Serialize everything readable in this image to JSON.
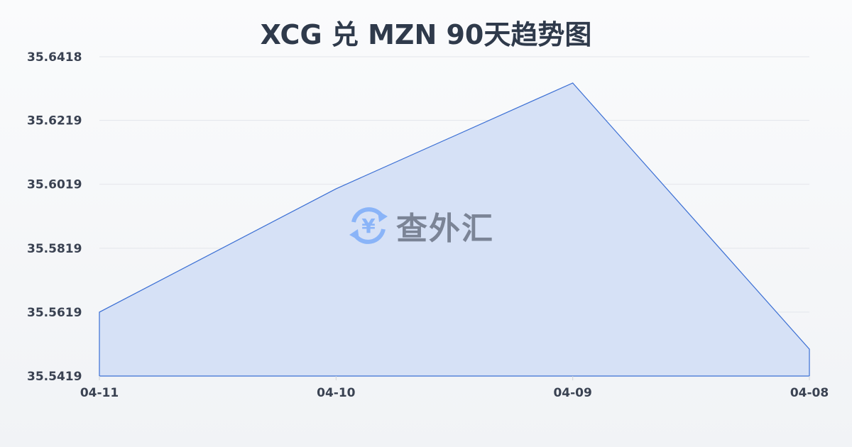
{
  "chart_data": {
    "type": "area",
    "title": "XCG 兑 MZN 90天趋势图",
    "categories": [
      "04-11",
      "04-10",
      "04-09",
      "04-08"
    ],
    "values": [
      35.5619,
      35.6005,
      35.6336,
      35.5503
    ],
    "yticks": [
      "35.6418",
      "35.6219",
      "35.6019",
      "35.5819",
      "35.5619",
      "35.5419"
    ],
    "ylim": [
      35.5419,
      35.6418
    ],
    "grid": true,
    "line_color": "#3b6fd4",
    "fill_color": "#d6e1f6"
  },
  "watermark": {
    "text": "查外汇",
    "icon": "yen-exchange-icon",
    "color": "#8ab4f8"
  }
}
